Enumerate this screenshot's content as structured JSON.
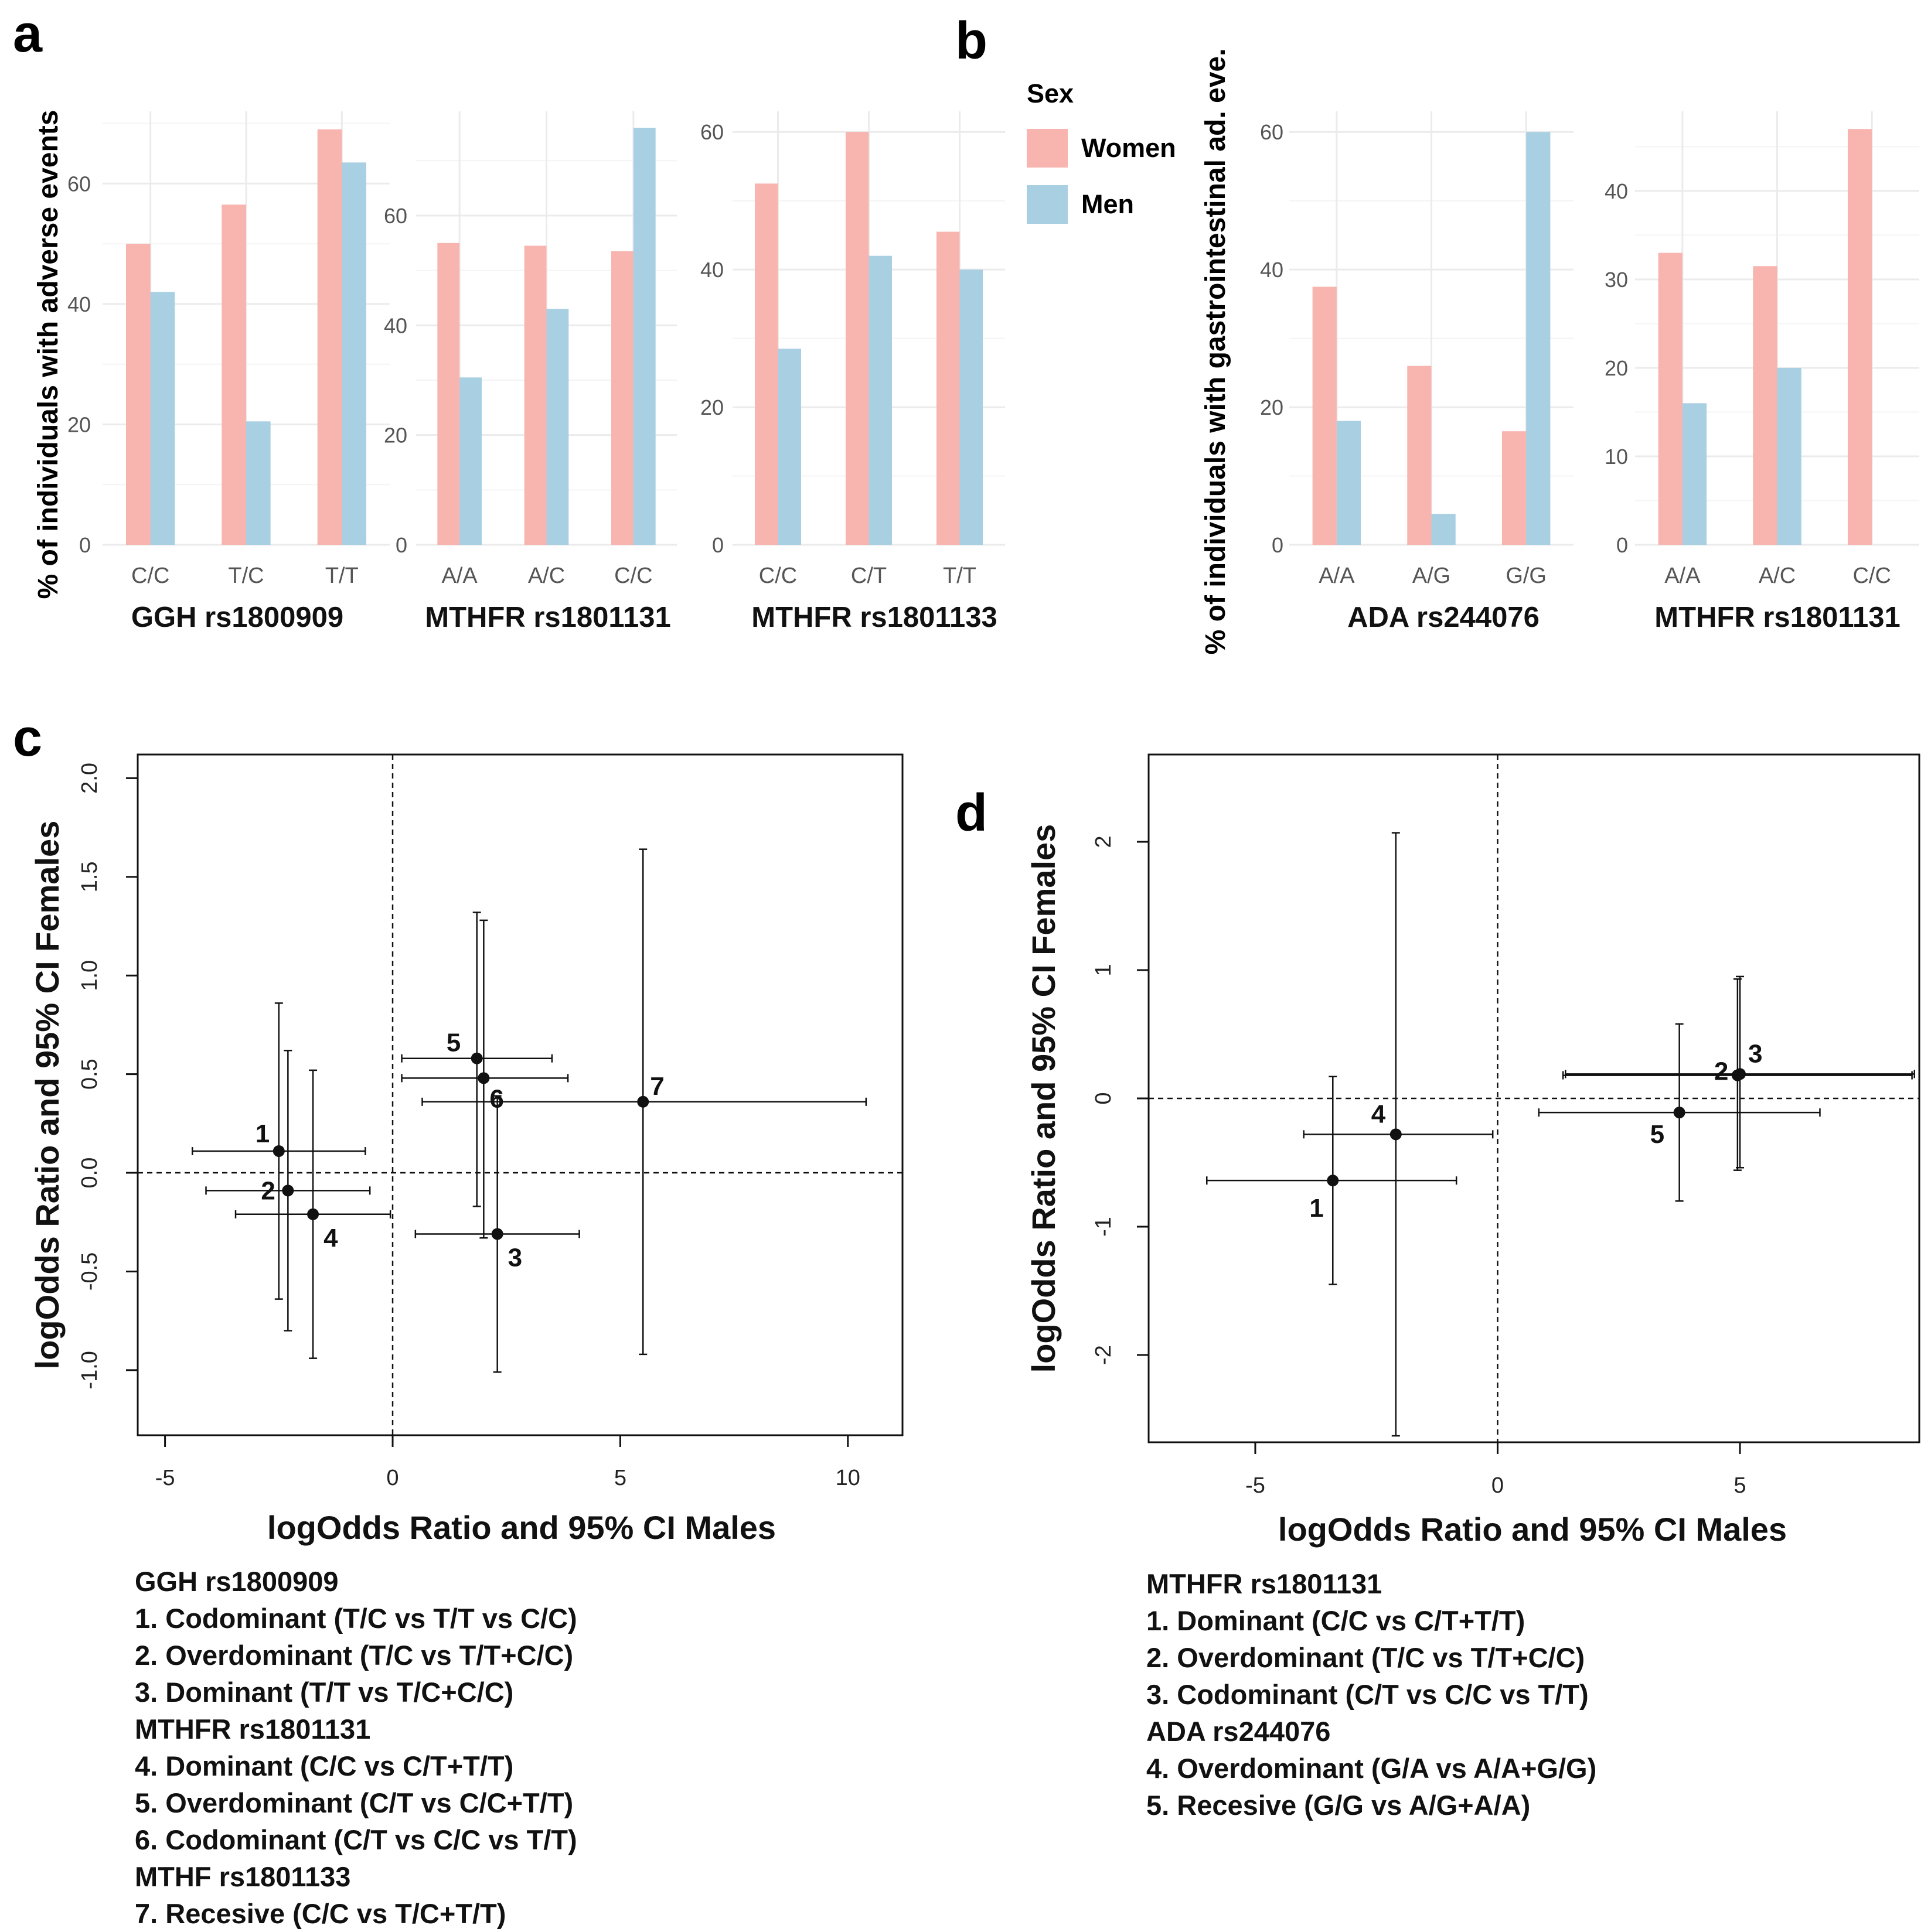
{
  "panel_labels": {
    "a": "a",
    "b": "b",
    "c": "c",
    "d": "d"
  },
  "colors": {
    "women": "#F8B4AE",
    "men": "#A9CFE3",
    "grid": "#EBEBEB",
    "axis_text": "#555555",
    "point": "#111111"
  },
  "legend": {
    "title": "Sex",
    "women_label": "Women",
    "men_label": "Men"
  },
  "bar_panels_a": {
    "ylabel": "% of individuals  with adverse events"
  },
  "bar_panels_b": {
    "ylabel": "% of individuals  with gastrointestinal ad. eve."
  },
  "chart_data": [
    {
      "id": "a1",
      "type": "bar",
      "title": "GGH rs1800909",
      "categories": [
        "C/C",
        "T/C",
        "T/T"
      ],
      "series": [
        {
          "name": "Women",
          "values": [
            50,
            56.5,
            69
          ]
        },
        {
          "name": "Men",
          "values": [
            42,
            20.5,
            63.5
          ]
        }
      ],
      "yticks": [
        0,
        20,
        40,
        60
      ],
      "ylim": [
        0,
        72
      ]
    },
    {
      "id": "a2",
      "type": "bar",
      "title": "MTHFR rs1801131",
      "categories": [
        "A/A",
        "A/C",
        "C/C"
      ],
      "series": [
        {
          "name": "Women",
          "values": [
            55,
            54.5,
            53.5
          ]
        },
        {
          "name": "Men",
          "values": [
            30.5,
            43,
            76
          ]
        }
      ],
      "yticks": [
        0,
        20,
        40,
        60
      ],
      "ylim": [
        0,
        79
      ]
    },
    {
      "id": "a3",
      "type": "bar",
      "title": "MTHFR rs1801133",
      "categories": [
        "C/C",
        "C/T",
        "T/T"
      ],
      "series": [
        {
          "name": "Women",
          "values": [
            52.5,
            60,
            45.5
          ]
        },
        {
          "name": "Men",
          "values": [
            28.5,
            42,
            40
          ]
        }
      ],
      "yticks": [
        0,
        20,
        40,
        60
      ],
      "ylim": [
        0,
        63
      ]
    },
    {
      "id": "b1",
      "type": "bar",
      "title": "ADA rs244076",
      "categories": [
        "A/A",
        "A/G",
        "G/G"
      ],
      "series": [
        {
          "name": "Women",
          "values": [
            37.5,
            26,
            16.5
          ]
        },
        {
          "name": "Men",
          "values": [
            18,
            4.5,
            60
          ]
        }
      ],
      "yticks": [
        0,
        20,
        40,
        60
      ],
      "ylim": [
        0,
        63
      ]
    },
    {
      "id": "b2",
      "type": "bar",
      "title": "MTHFR rs1801131",
      "categories": [
        "A/A",
        "A/C",
        "C/C"
      ],
      "series": [
        {
          "name": "Women",
          "values": [
            33,
            31.5,
            47
          ]
        },
        {
          "name": "Men",
          "values": [
            16,
            20,
            0
          ]
        }
      ],
      "yticks": [
        0,
        10,
        20,
        30,
        40
      ],
      "ylim": [
        0,
        49
      ]
    },
    {
      "id": "c",
      "type": "scatter",
      "xlabel": "logOdds Ratio and 95% CI Males",
      "ylabel": "logOdds Ratio and 95% CI Females",
      "xlim": [
        -5.6,
        11.2
      ],
      "ylim": [
        -1.33,
        2.12
      ],
      "xticks": [
        -5,
        0,
        5,
        10
      ],
      "yticks": [
        -1.0,
        -0.5,
        0.0,
        0.5,
        1.0,
        1.5,
        2.0
      ],
      "ytick_labels": [
        "-1.0",
        "-0.5",
        "0.0",
        "0.5",
        "1.0",
        "1.5",
        "2.0"
      ],
      "points": [
        {
          "label": "1",
          "x": -2.5,
          "y": 0.11,
          "xlo": -4.4,
          "xhi": -0.6,
          "ylo": -0.64,
          "yhi": 0.86
        },
        {
          "label": "2",
          "x": -2.3,
          "y": -0.09,
          "xlo": -4.1,
          "xhi": -0.5,
          "ylo": -0.8,
          "yhi": 0.62
        },
        {
          "label": "3",
          "x": 2.3,
          "y": -0.31,
          "xlo": 0.5,
          "xhi": 4.1,
          "ylo": -1.01,
          "yhi": 0.39
        },
        {
          "label": "4",
          "x": -1.75,
          "y": -0.21,
          "xlo": -3.45,
          "xhi": -0.05,
          "ylo": -0.94,
          "yhi": 0.52
        },
        {
          "label": "5",
          "x": 1.85,
          "y": 0.58,
          "xlo": 0.2,
          "xhi": 3.5,
          "ylo": -0.17,
          "yhi": 1.32
        },
        {
          "label": "6",
          "x": 2.0,
          "y": 0.48,
          "xlo": 0.2,
          "xhi": 3.85,
          "ylo": -0.33,
          "yhi": 1.28
        },
        {
          "label": "7",
          "x": 5.5,
          "y": 0.36,
          "xlo": 0.65,
          "xhi": 10.4,
          "ylo": -0.92,
          "yhi": 1.64
        }
      ]
    },
    {
      "id": "d",
      "type": "scatter",
      "xlabel": "logOdds Ratio and 95% CI Males",
      "ylabel": "logOdds Ratio and 95% CI Females",
      "xlim": [
        -7.2,
        8.7
      ],
      "ylim": [
        -2.68,
        2.68
      ],
      "xticks": [
        -5,
        0,
        5
      ],
      "yticks": [
        -2,
        -1,
        0,
        1,
        2
      ],
      "ytick_labels": [
        "-2",
        "-1",
        "0",
        "1",
        "2"
      ],
      "points": [
        {
          "label": "1",
          "x": -3.4,
          "y": -0.64,
          "xlo": -6.0,
          "xhi": -0.85,
          "ylo": -1.45,
          "yhi": 0.17
        },
        {
          "label": "2",
          "x": 4.95,
          "y": 0.18,
          "xlo": 1.35,
          "xhi": 8.55,
          "ylo": -0.56,
          "yhi": 0.93
        },
        {
          "label": "3",
          "x": 5.0,
          "y": 0.19,
          "xlo": 1.4,
          "xhi": 8.6,
          "ylo": -0.54,
          "yhi": 0.95
        },
        {
          "label": "4",
          "x": -2.1,
          "y": -0.28,
          "xlo": -4.0,
          "xhi": -0.1,
          "ylo": -2.63,
          "yhi": 2.07
        },
        {
          "label": "5",
          "x": 3.75,
          "y": -0.11,
          "xlo": 0.85,
          "xhi": 6.65,
          "ylo": -0.8,
          "yhi": 0.58
        }
      ]
    }
  ],
  "caption_c": [
    {
      "text": "GGH rs1800909",
      "group": true
    },
    {
      "text": "1. Codominant (T/C vs T/T vs C/C)"
    },
    {
      "text": "2. Overdominant (T/C vs T/T+C/C)"
    },
    {
      "text": "3. Dominant (T/T vs T/C+C/C)"
    },
    {
      "text": "MTHFR rs1801131",
      "group": true
    },
    {
      "text": "4. Dominant (C/C vs C/T+T/T)"
    },
    {
      "text": "5. Overdominant (C/T vs C/C+T/T)"
    },
    {
      "text": "6. Codominant (C/T vs C/C vs T/T)"
    },
    {
      "text": "MTHF rs1801133",
      "group": true
    },
    {
      "text": "7. Recesive (C/C vs T/C+T/T)"
    }
  ],
  "caption_d": [
    {
      "text": "MTHFR rs1801131",
      "group": true
    },
    {
      "text": "1. Dominant (C/C vs C/T+T/T)"
    },
    {
      "text": "2. Overdominant (T/C vs T/T+C/C)"
    },
    {
      "text": "3. Codominant (C/T vs C/C vs T/T)"
    },
    {
      "text": "ADA rs244076",
      "group": true
    },
    {
      "text": "4. Overdominant (G/A vs A/A+G/G)"
    },
    {
      "text": "5. Recesive (G/G vs A/G+A/A)"
    }
  ]
}
